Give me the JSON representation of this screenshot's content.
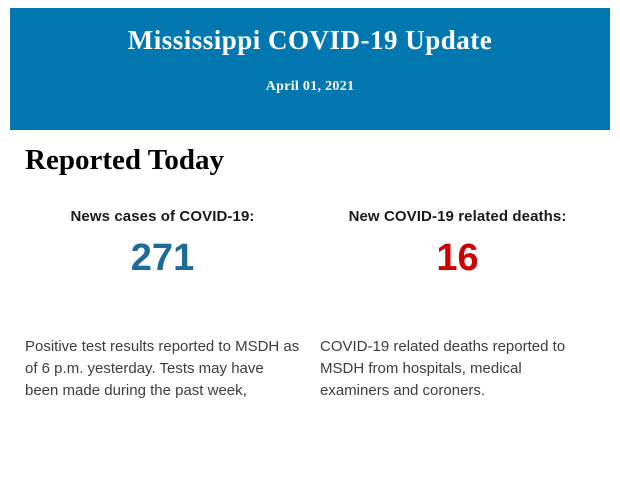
{
  "header": {
    "title": "Mississippi COVID-19 Update",
    "date": "April 01, 2021",
    "background_color": "#0277b0",
    "text_color": "#ffffff"
  },
  "main": {
    "heading": "Reported Today",
    "stats": [
      {
        "label": "News cases of COVID-19:",
        "value": "271",
        "value_color": "#1e6b99",
        "description": "Positive test results reported to MSDH as of 6 p.m. yesterday. Tests may have been made during the past week,"
      },
      {
        "label": "New COVID-19 related deaths:",
        "value": "16",
        "value_color": "#cc0000",
        "description": "COVID-19 related deaths reported to MSDH from hospitals, medical examiners and coroners."
      }
    ]
  }
}
